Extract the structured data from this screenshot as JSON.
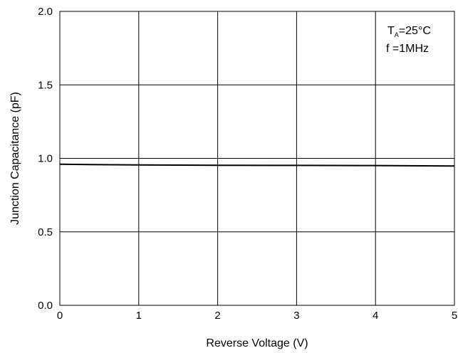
{
  "chart_data": {
    "type": "line",
    "title": "",
    "xlabel": "Reverse Voltage (V)",
    "ylabel": "Junction Capacitance (pF)",
    "xlim": [
      0,
      5
    ],
    "ylim": [
      0,
      2.0
    ],
    "x_ticks": [
      0,
      1,
      2,
      3,
      4,
      5
    ],
    "x_tick_labels": [
      "0",
      "1",
      "2",
      "3",
      "4",
      "5"
    ],
    "y_ticks": [
      0,
      0.5,
      1.0,
      1.5,
      2.0
    ],
    "y_tick_labels": [
      "0.0",
      "0.5",
      "1.0",
      "1.5",
      "2.0"
    ],
    "grid": true,
    "legend": "none",
    "annotation": {
      "line1_main": "T",
      "line1_sub": "A",
      "line1_rest": "=25°C",
      "line2": "f =1MHz"
    },
    "series": [
      {
        "color": "#000000",
        "x": [
          0,
          1,
          2,
          3,
          4,
          5
        ],
        "y": [
          0.96,
          0.955,
          0.953,
          0.952,
          0.951,
          0.948
        ]
      }
    ]
  }
}
